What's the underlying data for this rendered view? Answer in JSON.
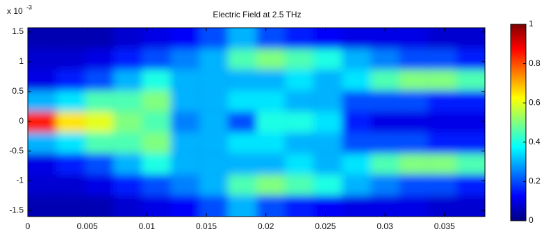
{
  "chart_data": {
    "type": "heatmap",
    "title": "Electric Field at 2.5 THz",
    "y_multiplier": {
      "base": "x 10",
      "exponent": "-3"
    },
    "x": [
      0.0012,
      0.0036,
      0.006,
      0.0084,
      0.0108,
      0.0132,
      0.0156,
      0.018,
      0.0204,
      0.0228,
      0.0252,
      0.0276,
      0.03,
      0.0324,
      0.0348,
      0.0372
    ],
    "y": [
      1.394,
      1.042,
      0.69,
      0.338,
      -0.014,
      -0.366,
      -0.718,
      -1.07,
      -1.422
    ],
    "z": [
      [
        0.05,
        0.05,
        0.05,
        0.08,
        0.1,
        0.12,
        0.2,
        0.3,
        0.2,
        0.15,
        0.12,
        0.1,
        0.1,
        0.1,
        0.08,
        0.08
      ],
      [
        0.08,
        0.08,
        0.1,
        0.15,
        0.2,
        0.25,
        0.3,
        0.45,
        0.5,
        0.45,
        0.4,
        0.3,
        0.25,
        0.2,
        0.2,
        0.15
      ],
      [
        0.1,
        0.15,
        0.2,
        0.3,
        0.4,
        0.3,
        0.3,
        0.3,
        0.3,
        0.35,
        0.3,
        0.35,
        0.45,
        0.5,
        0.5,
        0.45
      ],
      [
        0.3,
        0.35,
        0.45,
        0.45,
        0.5,
        0.3,
        0.3,
        0.35,
        0.35,
        0.3,
        0.3,
        0.2,
        0.2,
        0.2,
        0.15,
        0.15
      ],
      [
        0.85,
        0.65,
        0.6,
        0.5,
        0.45,
        0.25,
        0.3,
        0.2,
        0.4,
        0.4,
        0.35,
        0.15,
        0.1,
        0.1,
        0.1,
        0.1
      ],
      [
        0.3,
        0.35,
        0.45,
        0.45,
        0.5,
        0.3,
        0.3,
        0.35,
        0.35,
        0.3,
        0.3,
        0.2,
        0.2,
        0.2,
        0.15,
        0.15
      ],
      [
        0.1,
        0.15,
        0.2,
        0.3,
        0.4,
        0.3,
        0.3,
        0.3,
        0.3,
        0.35,
        0.3,
        0.35,
        0.45,
        0.5,
        0.5,
        0.45
      ],
      [
        0.08,
        0.08,
        0.1,
        0.15,
        0.2,
        0.25,
        0.3,
        0.45,
        0.5,
        0.45,
        0.4,
        0.3,
        0.25,
        0.2,
        0.2,
        0.15
      ],
      [
        0.05,
        0.05,
        0.05,
        0.08,
        0.1,
        0.12,
        0.2,
        0.3,
        0.2,
        0.15,
        0.12,
        0.1,
        0.1,
        0.1,
        0.08,
        0.08
      ]
    ],
    "colormap": "jet",
    "xlim": [
      0,
      0.0384
    ],
    "xticks": [
      0,
      0.005,
      0.01,
      0.015,
      0.02,
      0.025,
      0.03,
      0.035
    ],
    "ylim": [
      -1.6,
      1.57
    ],
    "yticks": [
      -1.5,
      -1,
      -0.5,
      0,
      0.5,
      1,
      1.5
    ],
    "clim": [
      0,
      1
    ],
    "cticks": [
      0,
      0.2,
      0.4,
      0.6,
      0.8,
      1
    ]
  }
}
